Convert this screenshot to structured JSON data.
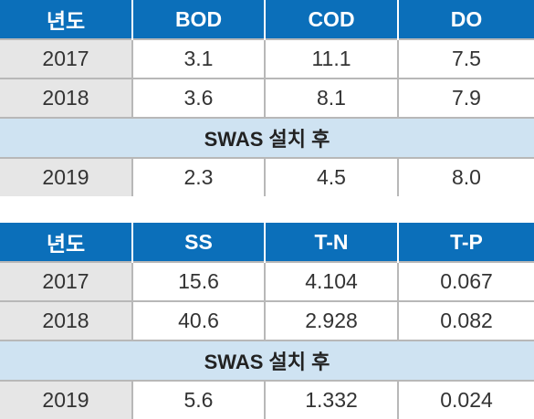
{
  "table1": {
    "headers": [
      "년도",
      "BOD",
      "COD",
      "DO"
    ],
    "rows": [
      [
        "2017",
        "3.1",
        "11.1",
        "7.5"
      ],
      [
        "2018",
        "3.6",
        "8.1",
        "7.9"
      ]
    ],
    "band_label": "SWAS 설치 후",
    "after_row": [
      "2019",
      "2.3",
      "4.5",
      "8.0"
    ]
  },
  "table2": {
    "headers": [
      "년도",
      "SS",
      "T-N",
      "T-P"
    ],
    "rows": [
      [
        "2017",
        "15.6",
        "4.104",
        "0.067"
      ],
      [
        "2018",
        "40.6",
        "2.928",
        "0.082"
      ]
    ],
    "band_label": "SWAS 설치 후",
    "after_row": [
      "2019",
      "5.6",
      "1.332",
      "0.024"
    ]
  },
  "colors": {
    "header_bg": "#0b6fba",
    "band_bg": "#cfe3f2",
    "year_cell_bg": "#e6e6e6"
  }
}
